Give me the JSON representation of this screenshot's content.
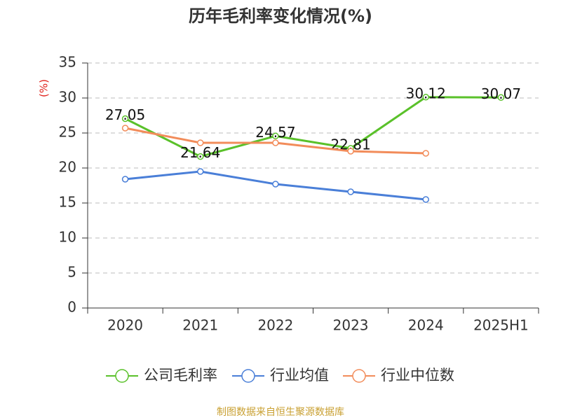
{
  "chart_data": {
    "type": "line",
    "title": "历年毛利率变化情况(%)",
    "y_label": "(%)",
    "categories": [
      "2020",
      "2021",
      "2022",
      "2023",
      "2024",
      "2025H1"
    ],
    "series": [
      {
        "name": "公司毛利率",
        "color": "#5ac12a",
        "values": [
          27.05,
          21.64,
          24.57,
          22.81,
          30.12,
          30.07
        ],
        "data_labels": true
      },
      {
        "name": "行业均值",
        "color": "#4a7fd8",
        "values": [
          18.4,
          19.5,
          17.7,
          16.6,
          15.5,
          null
        ]
      },
      {
        "name": "行业中位数",
        "color": "#f28c5a",
        "values": [
          25.7,
          23.6,
          23.6,
          22.4,
          22.1,
          null
        ]
      }
    ],
    "ylim": [
      0,
      35
    ],
    "yticks": [
      0,
      5,
      10,
      15,
      20,
      25,
      30,
      35
    ],
    "grid": true,
    "source": "制图数据来自恒生聚源数据库"
  }
}
